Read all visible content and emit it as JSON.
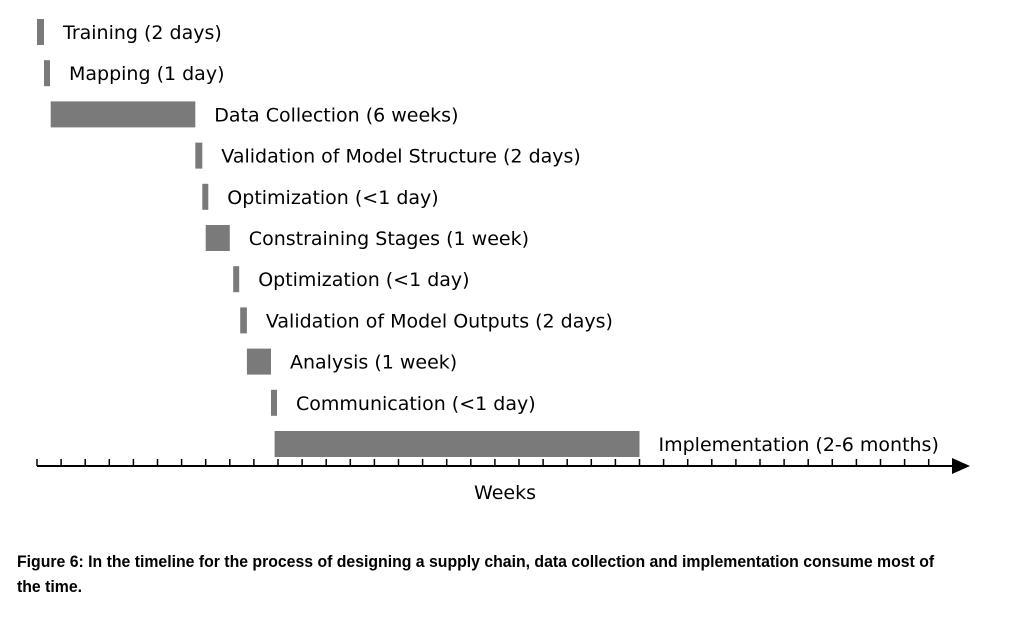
{
  "chart_data": {
    "type": "gantt",
    "xlabel": "Weeks",
    "caption": "Figure 6: In the timeline for the process of designing a supply chain, data collection and implementation consume most of the time.",
    "bar_color": "#7a7a7a",
    "tasks": [
      {
        "label": "Training (2 days)",
        "start": 0.0,
        "end": 0.29
      },
      {
        "label": "Mapping (1 day)",
        "start": 0.29,
        "end": 0.43
      },
      {
        "label": "Data Collection (6 weeks)",
        "start": 0.57,
        "end": 6.57
      },
      {
        "label": "Validation of Model Structure (2 days)",
        "start": 6.57,
        "end": 6.86
      },
      {
        "label": "Optimization (<1 day)",
        "start": 6.86,
        "end": 7.0
      },
      {
        "label": "Constraining Stages (1 week)",
        "start": 7.0,
        "end": 8.0
      },
      {
        "label": "Optimization (<1 day)",
        "start": 8.14,
        "end": 8.29
      },
      {
        "label": "Validation of Model Outputs (2 days)",
        "start": 8.43,
        "end": 8.71
      },
      {
        "label": "Analysis (1 week)",
        "start": 8.71,
        "end": 9.71
      },
      {
        "label": "Communication (<1 day)",
        "start": 9.71,
        "end": 9.86
      },
      {
        "label": "Implementation (2-6 months)",
        "start": 9.86,
        "end": 25.0
      }
    ],
    "x_range": [
      0,
      38.5
    ]
  }
}
